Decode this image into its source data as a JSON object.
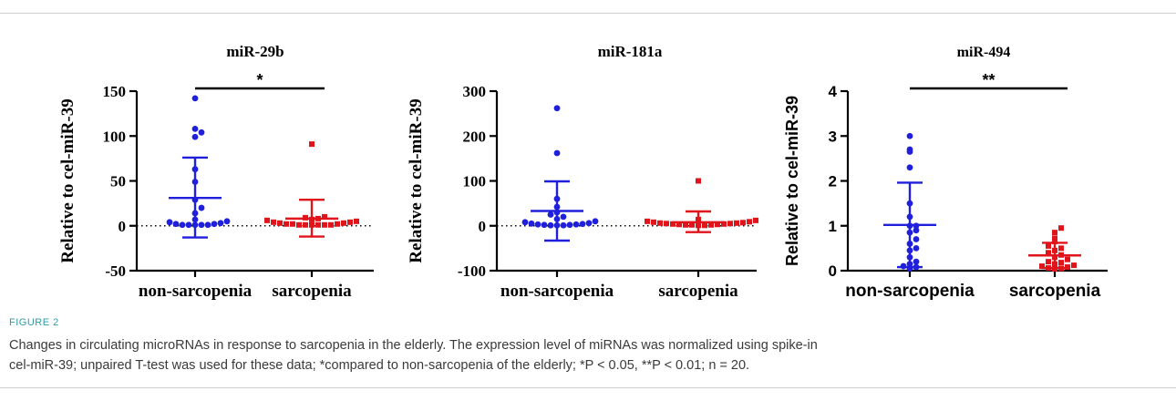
{
  "figure": {
    "label": "FIGURE 2",
    "caption_lines": [
      "Changes in circulating microRNAs in response to sarcopenia in the elderly. The expression level of miRNAs was normalized using spike-in",
      "cel-miR-39; unpaired T-test was used for these data; *compared to non-sarcopenia of the elderly; *P < 0.05, **P < 0.01; n = 20."
    ]
  },
  "colors": {
    "non_sarcopenia": "#1f1fdc",
    "sarcopenia": "#e0141b",
    "axis": "#000000"
  },
  "chart_data": [
    {
      "type": "scatter",
      "title": "miR-29b",
      "ylabel": "Relative to cel-miR-39",
      "categories": [
        "non-sarcopenia",
        "sarcopenia"
      ],
      "ylim": [
        -50,
        150
      ],
      "yticks": [
        -50,
        0,
        50,
        100,
        150
      ],
      "ytick_labels": [
        "-50",
        "0",
        "50",
        "100",
        "150"
      ],
      "zero_line": true,
      "significance": "*",
      "series": [
        {
          "name": "non-sarcopenia",
          "marker": "circle",
          "mean": 31,
          "sd_upper": 76,
          "sd_lower": -13,
          "values": [
            142,
            108,
            104,
            99,
            63,
            49,
            29,
            20,
            14,
            7,
            5,
            4,
            3,
            2,
            2,
            1,
            1,
            1,
            1,
            1
          ]
        },
        {
          "name": "sarcopenia",
          "marker": "square",
          "mean": 8,
          "sd_upper": 29,
          "sd_lower": -12,
          "values": [
            91,
            10,
            9,
            8,
            7,
            6,
            5,
            4,
            4,
            3,
            3,
            2,
            2,
            2,
            1,
            1,
            1,
            1,
            1,
            1
          ]
        }
      ]
    },
    {
      "type": "scatter",
      "title": "miR-181a",
      "ylabel": "Relative to cel-miR-39",
      "categories": [
        "non-sarcopenia",
        "sarcopenia"
      ],
      "ylim": [
        -100,
        300
      ],
      "yticks": [
        -100,
        0,
        100,
        200,
        300
      ],
      "ytick_labels": [
        "-100",
        "0",
        "100",
        "200",
        "300"
      ],
      "zero_line": true,
      "significance": "",
      "series": [
        {
          "name": "non-sarcopenia",
          "marker": "circle",
          "mean": 33,
          "sd_upper": 99,
          "sd_lower": -33,
          "values": [
            262,
            162,
            60,
            42,
            30,
            25,
            20,
            15,
            10,
            8,
            6,
            5,
            4,
            3,
            3,
            2,
            2,
            1,
            1,
            1
          ]
        },
        {
          "name": "sarcopenia",
          "marker": "square",
          "mean": 8,
          "sd_upper": 32,
          "sd_lower": -14,
          "values": [
            100,
            14,
            12,
            10,
            9,
            8,
            7,
            6,
            6,
            5,
            5,
            4,
            4,
            3,
            3,
            2,
            2,
            2,
            1,
            1
          ]
        }
      ]
    },
    {
      "type": "scatter",
      "title": "miR-494",
      "ylabel": "Relative to cel-miR-39",
      "categories": [
        "non-sarcopenia",
        "sarcopenia"
      ],
      "ylim": [
        0,
        4
      ],
      "yticks": [
        0,
        1,
        2,
        3,
        4
      ],
      "ytick_labels": [
        "0",
        "1",
        "2",
        "3",
        "4"
      ],
      "zero_line": false,
      "significance": "**",
      "series": [
        {
          "name": "non-sarcopenia",
          "marker": "circle",
          "mean": 1.02,
          "sd_upper": 1.96,
          "sd_lower": 0.08,
          "values": [
            3.0,
            2.7,
            2.65,
            2.3,
            1.5,
            1.2,
            1.0,
            1.0,
            0.9,
            0.85,
            0.7,
            0.6,
            0.5,
            0.45,
            0.3,
            0.2,
            0.15,
            0.1,
            0.08,
            0.05
          ]
        },
        {
          "name": "sarcopenia",
          "marker": "square",
          "mean": 0.34,
          "sd_upper": 0.62,
          "sd_lower": 0.06,
          "values": [
            0.95,
            0.85,
            0.72,
            0.65,
            0.55,
            0.5,
            0.45,
            0.4,
            0.35,
            0.3,
            0.25,
            0.2,
            0.18,
            0.15,
            0.12,
            0.1,
            0.08,
            0.06,
            0.05,
            0.04
          ]
        }
      ]
    }
  ]
}
